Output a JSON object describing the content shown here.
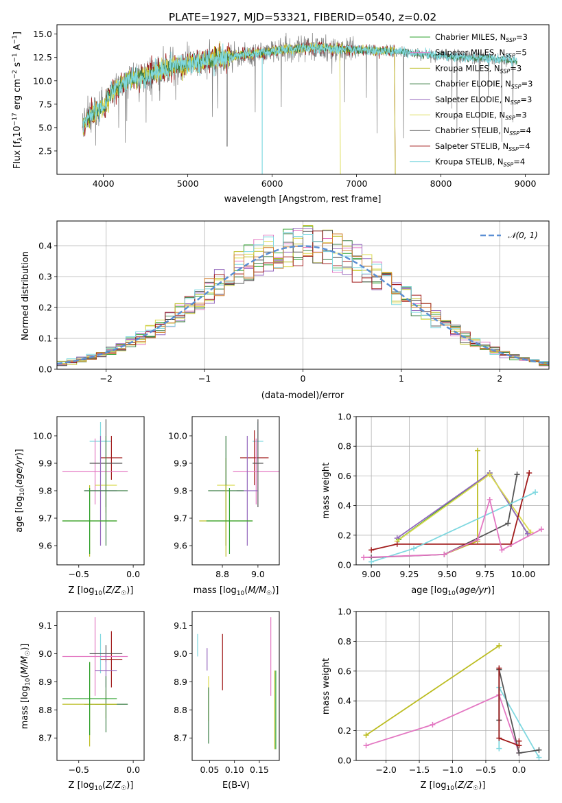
{
  "figure": {
    "title": "PLATE=1927, MJD=53321, FIBERID=0540, z=0.02"
  },
  "colors": {
    "Chabrier MILES": "#2ca02c",
    "Salpeter MILES": "#e377c2",
    "Kroupa MILES": "#bcbd22",
    "Chabrier ELODIE": "#3a7d44",
    "Salpeter ELODIE": "#9467bd",
    "Kroupa ELODIE": "#dbdb50",
    "Chabrier STELIB": "#555555",
    "Salpeter STELIB": "#a01a1a",
    "Kroupa STELIB": "#7fd8e0",
    "orange": "#d17f2f",
    "pink": "#e377c2",
    "normal_curve": "#5b8fd4"
  },
  "chart_data": [
    {
      "id": "spectrum",
      "type": "line",
      "xlabel": "wavelength [Angstrom, rest frame]",
      "ylabel": "Flux [f_λ 10^-17 erg cm^-2 s^-1 A^-1]",
      "xlim": [
        3450,
        9280
      ],
      "ylim": [
        0,
        16
      ],
      "xticks": [
        "4000",
        "5000",
        "6000",
        "7000",
        "8000",
        "9000"
      ],
      "yticks": [
        "2.5",
        "5.0",
        "7.5",
        "10.0",
        "12.5",
        "15.0"
      ],
      "legend_position": "top-right",
      "legend": [
        "Chabrier MILES, N_SSP=3",
        "Salpeter MILES, N_SSP=5",
        "Kroupa MILES, N_SSP=3",
        "Chabrier ELODIE, N_SSP=3",
        "Salpeter ELODIE, N_SSP=3",
        "Kroupa ELODIE, N_SSP=3",
        "Chabrier STELIB, N_SSP=4",
        "Salpeter STELIB, N_SSP=4",
        "Kroupa STELIB, N_SSP=4"
      ],
      "continuum": [
        [
          3750,
          5.0
        ],
        [
          3850,
          6.5
        ],
        [
          4000,
          7.0
        ],
        [
          4100,
          9.0
        ],
        [
          4300,
          10.2
        ],
        [
          4500,
          10.5
        ],
        [
          4800,
          11.5
        ],
        [
          5000,
          11.8
        ],
        [
          5300,
          12.3
        ],
        [
          5600,
          12.7
        ],
        [
          5900,
          13.0
        ],
        [
          6200,
          13.4
        ],
        [
          6500,
          13.6
        ],
        [
          6800,
          13.4
        ],
        [
          7100,
          13.3
        ],
        [
          7400,
          13.2
        ],
        [
          7700,
          12.9
        ],
        [
          8000,
          12.7
        ],
        [
          8300,
          12.5
        ],
        [
          8600,
          12.4
        ],
        [
          8900,
          12.1
        ]
      ]
    },
    {
      "id": "residual_histogram",
      "type": "histogram",
      "xlabel": "(data-model)/error",
      "ylabel": "Normed distribution",
      "xlim": [
        -2.5,
        2.5
      ],
      "ylim": [
        0,
        0.48
      ],
      "xticks": [
        "−2",
        "−1",
        "0",
        "1",
        "2"
      ],
      "yticks": [
        "0.0",
        "0.1",
        "0.2",
        "0.3",
        "0.4"
      ],
      "grid": true,
      "legend_position": "top-right",
      "legend": [
        "𝒩(0, 1)"
      ],
      "bin_width": 0.1
    },
    {
      "id": "age_vs_Z",
      "type": "errorbar",
      "xlabel": "Z [log₁₀(Z/Z☉)]",
      "ylabel": "age  [log₁₀(age/yr)]",
      "xlim": [
        -0.7,
        0.1
      ],
      "ylim": [
        9.53,
        10.07
      ],
      "xticks": [
        "−0.5",
        "0.0"
      ],
      "yticks": [
        "9.6",
        "9.7",
        "9.8",
        "9.9",
        "10.0"
      ],
      "points": [
        {
          "model": "Kroupa STELIB",
          "x": -0.3,
          "xerr": 0.1,
          "y": 9.98,
          "yerr": 0.07
        },
        {
          "model": "Salpeter STELIB",
          "x": -0.2,
          "xerr": 0.1,
          "y": 9.92,
          "yerr": 0.08
        },
        {
          "model": "Salpeter MILES",
          "x": -0.35,
          "xerr": 0.3,
          "y": 9.87,
          "yerr": 0.12
        },
        {
          "model": "Chabrier STELIB",
          "x": -0.25,
          "xerr": 0.15,
          "y": 9.9,
          "yerr": 0.16
        },
        {
          "model": "Kroupa ELODIE",
          "x": -0.25,
          "xerr": 0.1,
          "y": 9.82,
          "yerr": 0.1
        },
        {
          "model": "Salpeter ELODIE",
          "x": -0.3,
          "xerr": 0.15,
          "y": 9.8,
          "yerr": 0.2
        },
        {
          "model": "Chabrier ELODIE",
          "x": -0.25,
          "xerr": 0.2,
          "y": 9.8,
          "yerr": 0.2
        },
        {
          "model": "Kroupa MILES",
          "x": -0.4,
          "xerr": 0.25,
          "y": 9.69,
          "yerr": 0.13
        },
        {
          "model": "Chabrier MILES",
          "x": -0.4,
          "xerr": 0.25,
          "y": 9.69,
          "yerr": 0.12
        }
      ]
    },
    {
      "id": "age_vs_mass",
      "type": "errorbar",
      "xlabel": "mass [log₁₀(M/M☉)]",
      "ylabel": "",
      "xlim": [
        8.63,
        9.12
      ],
      "ylim": [
        9.53,
        10.07
      ],
      "xticks": [
        "8.8",
        "9.0"
      ],
      "yticks": [
        "9.6",
        "9.7",
        "9.8",
        "9.9",
        "10.0"
      ],
      "points": [
        {
          "model": "Kroupa STELIB",
          "x": 9.0,
          "xerr": 0.03,
          "y": 9.98,
          "yerr": 0.07
        },
        {
          "model": "Salpeter STELIB",
          "x": 8.98,
          "xerr": 0.08,
          "y": 9.92,
          "yerr": 0.1
        },
        {
          "model": "Salpeter MILES",
          "x": 8.99,
          "xerr": 0.13,
          "y": 9.87,
          "yerr": 0.12
        },
        {
          "model": "Chabrier STELIB",
          "x": 9.0,
          "xerr": 0.03,
          "y": 9.9,
          "yerr": 0.16
        },
        {
          "model": "Kroupa ELODIE",
          "x": 8.82,
          "xerr": 0.05,
          "y": 9.82,
          "yerr": 0.1
        },
        {
          "model": "Salpeter ELODIE",
          "x": 8.94,
          "xerr": 0.06,
          "y": 9.8,
          "yerr": 0.2
        },
        {
          "model": "Chabrier ELODIE",
          "x": 8.82,
          "xerr": 0.1,
          "y": 9.8,
          "yerr": 0.2
        },
        {
          "model": "Kroupa MILES",
          "x": 8.82,
          "xerr": 0.15,
          "y": 9.69,
          "yerr": 0.13
        },
        {
          "model": "Chabrier MILES",
          "x": 8.84,
          "xerr": 0.13,
          "y": 9.69,
          "yerr": 0.12
        }
      ]
    },
    {
      "id": "massweight_vs_age",
      "type": "line",
      "xlabel": "age  [log₁₀(age/yr)]",
      "ylabel": "mass weight",
      "xlim": [
        8.9,
        10.17
      ],
      "ylim": [
        0,
        1
      ],
      "xticks": [
        "9.00",
        "9.25",
        "9.50",
        "9.75",
        "10.00"
      ],
      "yticks": [
        "0.0",
        "0.2",
        "0.4",
        "0.6",
        "0.8",
        "1.0"
      ],
      "grid": true,
      "series": [
        {
          "model": "Kroupa MILES",
          "x": [
            9.7,
            9.7,
            9.48
          ],
          "y": [
            0.77,
            0.16,
            0.07
          ]
        },
        {
          "model": "Chabrier MILES",
          "x": [
            9.18,
            9.78,
            10.03
          ],
          "y": [
            0.17,
            0.62,
            0.21
          ]
        },
        {
          "model": "Salpeter ELODIE",
          "x": [
            9.17,
            9.78,
            10.03
          ],
          "y": [
            0.18,
            0.62,
            0.21
          ]
        },
        {
          "model": "Kroupa ELODIE",
          "x": [
            9.17,
            9.78,
            10.05
          ],
          "y": [
            0.16,
            0.61,
            0.22
          ]
        },
        {
          "model": "Chabrier STELIB",
          "x": [
            9.0,
            9.48,
            9.9,
            9.96
          ],
          "y": [
            0.05,
            0.07,
            0.28,
            0.61
          ]
        },
        {
          "model": "Salpeter STELIB",
          "x": [
            9.0,
            9.17,
            9.92,
            10.04
          ],
          "y": [
            0.1,
            0.14,
            0.14,
            0.62
          ]
        },
        {
          "model": "Kroupa STELIB",
          "x": [
            9.0,
            9.28,
            10.08
          ],
          "y": [
            0.02,
            0.11,
            0.49
          ]
        },
        {
          "model": "Salpeter MILES",
          "x": [
            8.95,
            9.48,
            9.7,
            9.78,
            9.86,
            10.12
          ],
          "y": [
            0.05,
            0.07,
            0.17,
            0.44,
            0.1,
            0.24
          ]
        }
      ]
    },
    {
      "id": "mass_vs_Z",
      "type": "errorbar",
      "xlabel": "Z [log₁₀(Z/Z☉)]",
      "ylabel": "mass [log₁₀(M/M☉)]",
      "xlim": [
        -0.7,
        0.1
      ],
      "ylim": [
        8.62,
        9.15
      ],
      "xticks": [
        "−0.5",
        "0.0"
      ],
      "yticks": [
        "8.7",
        "8.8",
        "8.9",
        "9.0",
        "9.1"
      ],
      "points": [
        {
          "model": "Kroupa STELIB",
          "x": -0.3,
          "xerr": 0.1,
          "y": 9.0,
          "yerr": 0.07
        },
        {
          "model": "Salpeter STELIB",
          "x": -0.2,
          "xerr": 0.1,
          "y": 8.98,
          "yerr": 0.1
        },
        {
          "model": "Salpeter MILES",
          "x": -0.35,
          "xerr": 0.3,
          "y": 8.99,
          "yerr": 0.14
        },
        {
          "model": "Chabrier STELIB",
          "x": -0.25,
          "xerr": 0.15,
          "y": 9.0,
          "yerr": 0.03
        },
        {
          "model": "Salpeter ELODIE",
          "x": -0.25,
          "xerr": 0.1,
          "y": 8.94,
          "yerr": 0.06
        },
        {
          "model": "Kroupa ELODIE",
          "x": -0.25,
          "xerr": 0.1,
          "y": 8.82,
          "yerr": 0.05
        },
        {
          "model": "Chabrier ELODIE",
          "x": -0.25,
          "xerr": 0.2,
          "y": 8.82,
          "yerr": 0.1
        },
        {
          "model": "Kroupa MILES",
          "x": -0.4,
          "xerr": 0.25,
          "y": 8.82,
          "yerr": 0.15
        },
        {
          "model": "Chabrier MILES",
          "x": -0.4,
          "xerr": 0.25,
          "y": 8.84,
          "yerr": 0.13
        }
      ]
    },
    {
      "id": "mass_vs_ebv",
      "type": "errorbar",
      "xlabel": "E(B-V)",
      "ylabel": "",
      "xlim": [
        0.015,
        0.19
      ],
      "ylim": [
        8.62,
        9.15
      ],
      "xticks": [
        "0.05",
        "0.10",
        "0.15"
      ],
      "yticks": [
        "8.7",
        "8.8",
        "8.9",
        "9.0",
        "9.1"
      ],
      "points": [
        {
          "model": "Kroupa STELIB",
          "x": 0.026,
          "y": 9.03,
          "yerr": 0.04
        },
        {
          "model": "Salpeter ELODIE",
          "x": 0.045,
          "y": 8.98,
          "yerr": 0.04
        },
        {
          "model": "Kroupa ELODIE",
          "x": 0.048,
          "y": 8.84,
          "yerr": 0.08
        },
        {
          "model": "Chabrier ELODIE",
          "x": 0.048,
          "y": 8.78,
          "yerr": 0.1
        },
        {
          "model": "Salpeter STELIB",
          "x": 0.076,
          "y": 8.97,
          "yerr": 0.1
        },
        {
          "model": "Salpeter MILES",
          "x": 0.173,
          "y": 8.99,
          "yerr": 0.14
        },
        {
          "model": "Kroupa MILES",
          "x": 0.181,
          "y": 8.8,
          "yerr": 0.14
        },
        {
          "model": "Chabrier MILES",
          "x": 0.183,
          "y": 8.8,
          "yerr": 0.14
        }
      ]
    },
    {
      "id": "massweight_vs_Z",
      "type": "line",
      "xlabel": "Z [log₁₀(Z/Z☉)]",
      "ylabel": "mass weight",
      "xlim": [
        -2.45,
        0.45
      ],
      "ylim": [
        0,
        1
      ],
      "xticks": [
        "−2.0",
        "−1.5",
        "−1.0",
        "−0.5",
        "0.0"
      ],
      "yticks": [
        "0.0",
        "0.2",
        "0.4",
        "0.6",
        "0.8",
        "1.0"
      ],
      "grid": true,
      "series": [
        {
          "model": "Kroupa MILES",
          "x": [
            -2.3,
            -0.3
          ],
          "y": [
            0.17,
            0.77
          ]
        },
        {
          "model": "Salpeter MILES",
          "x": [
            -2.3,
            -1.3,
            -0.3,
            0.0
          ],
          "y": [
            0.1,
            0.24,
            0.44,
            0.05
          ]
        },
        {
          "model": "Kroupa STELIB",
          "x": [
            -0.3,
            -0.3,
            0.3
          ],
          "y": [
            0.08,
            0.49,
            0.02
          ]
        },
        {
          "model": "Chabrier STELIB",
          "x": [
            -0.3,
            -0.3,
            0.0,
            0.3
          ],
          "y": [
            0.27,
            0.61,
            0.05,
            0.07
          ]
        },
        {
          "model": "Salpeter STELIB",
          "x": [
            -0.3,
            -0.3,
            0.0,
            0.0
          ],
          "y": [
            0.62,
            0.15,
            0.1,
            0.13
          ]
        }
      ]
    }
  ]
}
